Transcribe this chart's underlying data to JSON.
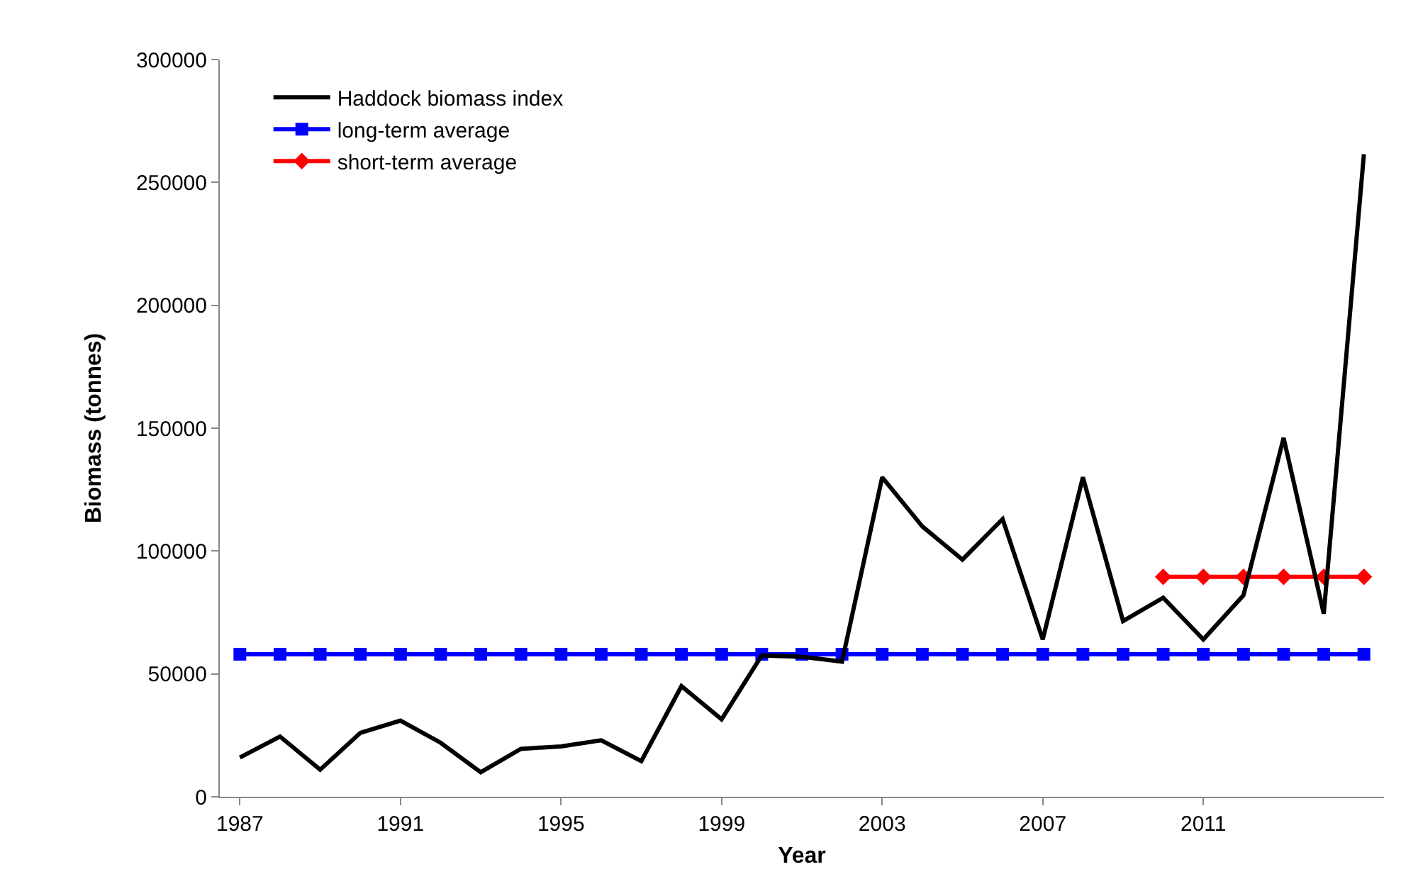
{
  "chart_data": {
    "type": "line",
    "xlabel": "Year",
    "ylabel": "Biomass (tonnes)",
    "x": [
      1987,
      1988,
      1989,
      1990,
      1991,
      1992,
      1993,
      1994,
      1995,
      1996,
      1997,
      1998,
      1999,
      2000,
      2001,
      2002,
      2003,
      2004,
      2005,
      2006,
      2007,
      2008,
      2009,
      2010,
      2011,
      2012,
      2013,
      2014,
      2015
    ],
    "series": [
      {
        "name": "Haddock biomass index",
        "color": "#000000",
        "marker": "none",
        "values": [
          16000,
          24500,
          11000,
          26000,
          31000,
          22000,
          10000,
          19500,
          20500,
          23000,
          14500,
          45000,
          31500,
          57500,
          57000,
          55000,
          130000,
          110000,
          96500,
          113000,
          64000,
          130000,
          71500,
          81000,
          64000,
          82000,
          146000,
          74500,
          261500
        ]
      },
      {
        "name": "long-term average",
        "color": "#0000ff",
        "marker": "square",
        "values": [
          58000,
          58000,
          58000,
          58000,
          58000,
          58000,
          58000,
          58000,
          58000,
          58000,
          58000,
          58000,
          58000,
          58000,
          58000,
          58000,
          58000,
          58000,
          58000,
          58000,
          58000,
          58000,
          58000,
          58000,
          58000,
          58000,
          58000,
          58000,
          58000
        ]
      },
      {
        "name": "short-term average",
        "color": "#ff0000",
        "marker": "diamond",
        "values": [
          null,
          null,
          null,
          null,
          null,
          null,
          null,
          null,
          null,
          null,
          null,
          null,
          null,
          null,
          null,
          null,
          null,
          null,
          null,
          null,
          null,
          null,
          null,
          89500,
          89500,
          89500,
          89500,
          89500,
          89500
        ]
      }
    ],
    "xlim": [
      1986.5,
      2015.5
    ],
    "xticks": [
      1987,
      1991,
      1995,
      1999,
      2003,
      2007,
      2011
    ],
    "ylim": [
      0,
      300000
    ],
    "yticks": [
      0,
      50000,
      100000,
      150000,
      200000,
      250000,
      300000
    ],
    "grid": false,
    "legend": "top left",
    "line_style": "solid"
  }
}
